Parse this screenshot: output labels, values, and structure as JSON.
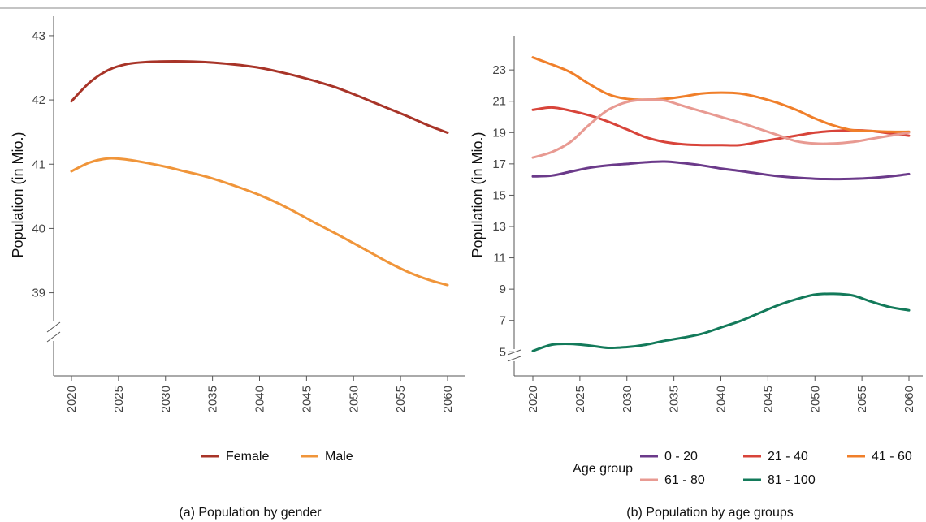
{
  "chart_data": [
    {
      "id": "a",
      "type": "line",
      "caption": "(a) Population by gender",
      "ylabel": "Population (in Mio.)",
      "xlabel": "",
      "xlim": [
        2020,
        2060
      ],
      "ylim": [
        38.3,
        43.1
      ],
      "y_axis_break": true,
      "grid": false,
      "legend": "bottom",
      "x_ticks": [
        "2020",
        "2025",
        "2030",
        "2035",
        "2040",
        "2045",
        "2050",
        "2055",
        "2060"
      ],
      "y_ticks": [
        "39",
        "40",
        "41",
        "42",
        "43"
      ],
      "x": [
        2020,
        2022,
        2024,
        2026,
        2028,
        2030,
        2032,
        2034,
        2036,
        2038,
        2040,
        2042,
        2044,
        2046,
        2048,
        2050,
        2052,
        2054,
        2056,
        2058,
        2060
      ],
      "series": [
        {
          "name": "Female",
          "color": "#a83428",
          "values": [
            41.98,
            42.28,
            42.47,
            42.56,
            42.59,
            42.6,
            42.6,
            42.59,
            42.57,
            42.54,
            42.5,
            42.44,
            42.37,
            42.29,
            42.2,
            42.09,
            41.97,
            41.85,
            41.73,
            41.6,
            41.49
          ]
        },
        {
          "name": "Male",
          "color": "#f0953a",
          "values": [
            40.89,
            41.03,
            41.09,
            41.07,
            41.02,
            40.96,
            40.89,
            40.82,
            40.73,
            40.63,
            40.52,
            40.39,
            40.24,
            40.08,
            39.93,
            39.77,
            39.61,
            39.45,
            39.31,
            39.2,
            39.12
          ]
        }
      ]
    },
    {
      "id": "b",
      "type": "line",
      "caption": "(b) Population by age groups",
      "ylabel": "Population (in Mio.)",
      "xlabel": "",
      "xlim": [
        2020,
        2060
      ],
      "ylim": [
        3.2,
        25.6
      ],
      "y_axis_break": true,
      "grid": false,
      "legend": "bottom",
      "legend_title": "Age group",
      "x_ticks": [
        "2020",
        "2025",
        "2030",
        "2035",
        "2040",
        "2045",
        "2050",
        "2055",
        "2060"
      ],
      "y_ticks": [
        "5",
        "7",
        "9",
        "11",
        "13",
        "15",
        "17",
        "19",
        "21",
        "23"
      ],
      "x": [
        2020,
        2022,
        2024,
        2026,
        2028,
        2030,
        2032,
        2034,
        2036,
        2038,
        2040,
        2042,
        2044,
        2046,
        2048,
        2050,
        2052,
        2054,
        2056,
        2058,
        2060
      ],
      "series": [
        {
          "name": "0 - 20",
          "color": "#6b3a8a",
          "values": [
            16.2,
            16.25,
            16.5,
            16.75,
            16.9,
            17.0,
            17.1,
            17.15,
            17.05,
            16.9,
            16.7,
            16.55,
            16.38,
            16.22,
            16.12,
            16.05,
            16.03,
            16.05,
            16.1,
            16.2,
            16.35
          ]
        },
        {
          "name": "21 - 40",
          "color": "#d8443a",
          "values": [
            20.45,
            20.6,
            20.4,
            20.1,
            19.7,
            19.2,
            18.7,
            18.4,
            18.25,
            18.2,
            18.2,
            18.2,
            18.4,
            18.6,
            18.8,
            19.0,
            19.1,
            19.15,
            19.1,
            18.95,
            18.8
          ]
        },
        {
          "name": "41 - 60",
          "color": "#f07f2a",
          "values": [
            23.8,
            23.35,
            22.85,
            22.1,
            21.45,
            21.15,
            21.1,
            21.15,
            21.3,
            21.5,
            21.55,
            21.5,
            21.25,
            20.9,
            20.45,
            19.9,
            19.45,
            19.15,
            19.1,
            19.05,
            19.05
          ]
        },
        {
          "name": "61 - 80",
          "color": "#e89a92",
          "values": [
            17.4,
            17.75,
            18.4,
            19.5,
            20.45,
            20.95,
            21.1,
            21.05,
            20.7,
            20.35,
            20.0,
            19.65,
            19.25,
            18.85,
            18.45,
            18.3,
            18.3,
            18.4,
            18.6,
            18.8,
            19.0
          ]
        },
        {
          "name": "81 - 100",
          "color": "#137a5a",
          "values": [
            5.05,
            5.45,
            5.5,
            5.4,
            5.25,
            5.3,
            5.45,
            5.7,
            5.9,
            6.15,
            6.55,
            6.95,
            7.45,
            7.95,
            8.35,
            8.65,
            8.7,
            8.6,
            8.2,
            7.85,
            7.65
          ]
        }
      ]
    }
  ]
}
